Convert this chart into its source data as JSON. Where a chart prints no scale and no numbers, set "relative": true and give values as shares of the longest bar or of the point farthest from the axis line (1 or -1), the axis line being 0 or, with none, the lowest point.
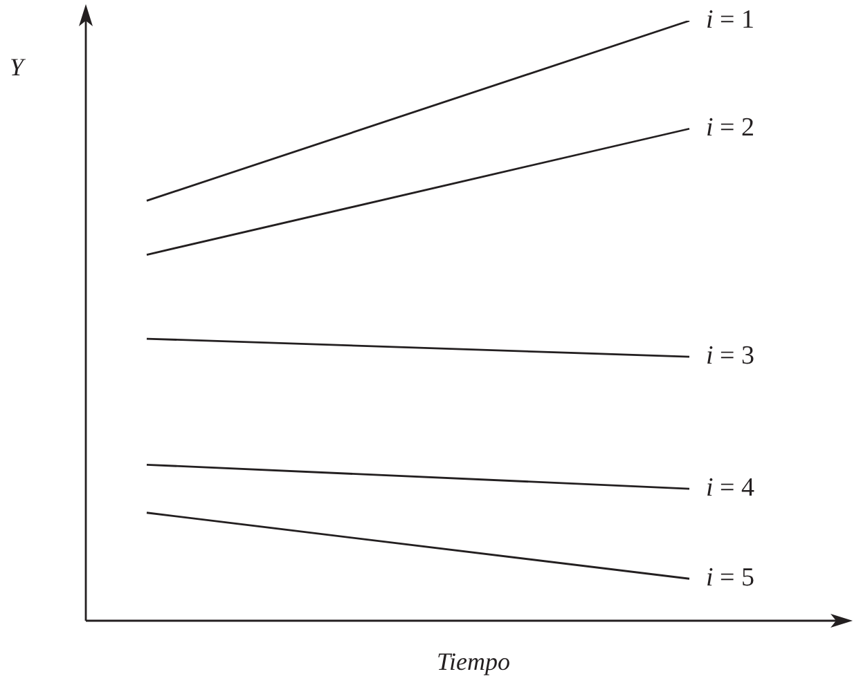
{
  "chart_data": {
    "type": "line",
    "relative": true,
    "xlabel": "Tiempo",
    "ylabel": "Y",
    "categories": [
      null,
      null
    ],
    "series": [
      {
        "name": "i = 1",
        "color": "#231f20",
        "values": [
          0.7,
          1
        ]
      },
      {
        "name": "i = 2",
        "color": "#231f20",
        "values": [
          0.61,
          0.82
        ]
      },
      {
        "name": "i = 3",
        "color": "#231f20",
        "values": [
          0.47,
          0.44
        ]
      },
      {
        "name": "i = 4",
        "color": "#231f20",
        "values": [
          0.26,
          0.22
        ]
      },
      {
        "name": "i = 5",
        "color": "#231f20",
        "values": [
          0.18,
          0.07
        ]
      }
    ],
    "legend": false,
    "grid": false,
    "marker": "none",
    "line_style": "solid",
    "tick_labels": false
  }
}
